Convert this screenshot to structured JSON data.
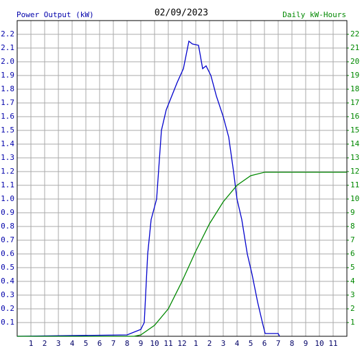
{
  "chart_data": {
    "type": "line",
    "title": "02/09/2023",
    "ylabel": "Power Output (kW)",
    "y2label": "Daily kW-Hours",
    "xlim": [
      0,
      24
    ],
    "xticks": [
      1,
      2,
      3,
      4,
      5,
      6,
      7,
      8,
      9,
      10,
      11,
      12,
      {
        "value": 13,
        "label": "1"
      },
      {
        "value": 14,
        "label": "2"
      },
      {
        "value": 15,
        "label": "3"
      },
      {
        "value": 16,
        "label": "4"
      },
      {
        "value": 17,
        "label": "5"
      },
      {
        "value": 18,
        "label": "6"
      },
      {
        "value": 19,
        "label": "7"
      },
      {
        "value": 20,
        "label": "8"
      },
      {
        "value": 21,
        "label": "9"
      },
      {
        "value": 22,
        "label": "10"
      },
      {
        "value": 23,
        "label": "11"
      }
    ],
    "ylim": [
      0,
      2.3
    ],
    "yticks": [
      0.1,
      0.2,
      0.3,
      0.4,
      0.5,
      0.6,
      0.7,
      0.8,
      0.9,
      {
        "value": 1,
        "label": "1.0"
      },
      1.1,
      1.2,
      1.3,
      1.4,
      1.5,
      1.6,
      1.7,
      1.8,
      1.9,
      {
        "value": 2,
        "label": "2.0"
      },
      2.1,
      2.2
    ],
    "y2lim": [
      0,
      23
    ],
    "y2ticks": [
      1,
      2,
      3,
      4,
      5,
      6,
      7,
      8,
      9,
      10,
      11,
      12,
      13,
      14,
      15,
      16,
      17,
      18,
      19,
      20,
      21,
      22
    ],
    "grid": true,
    "series": [
      {
        "color": "#0000cc",
        "x": [
          0,
          8,
          9,
          9.25,
          9.5,
          9.75,
          10.15,
          10.5,
          10.85,
          11.25,
          11.65,
          12.1,
          12.5,
          12.75,
          13.2,
          13.5,
          13.75,
          14.1,
          14.5,
          15,
          15.4,
          15.75,
          16,
          16.35,
          16.75,
          17.1,
          17.5,
          17.85,
          18.05,
          19,
          19.1
        ],
        "values": [
          0,
          0.01,
          0.05,
          0.1,
          0.6,
          0.85,
          1.0,
          1.5,
          1.65,
          1.75,
          1.85,
          1.95,
          2.15,
          2.13,
          2.12,
          1.95,
          1.97,
          1.9,
          1.75,
          1.6,
          1.45,
          1.2,
          1.0,
          0.85,
          0.6,
          0.45,
          0.25,
          0.1,
          0.02,
          0.02,
          0
        ]
      },
      {
        "color": "#008800",
        "axis": "y2",
        "x": [
          0,
          8.5,
          9,
          10,
          11,
          12,
          13,
          14,
          15,
          16,
          17,
          18,
          24
        ],
        "values": [
          0,
          0,
          0.1,
          0.8,
          2.0,
          4.0,
          6.2,
          8.2,
          9.8,
          11.0,
          11.7,
          11.95,
          11.95
        ]
      }
    ]
  }
}
